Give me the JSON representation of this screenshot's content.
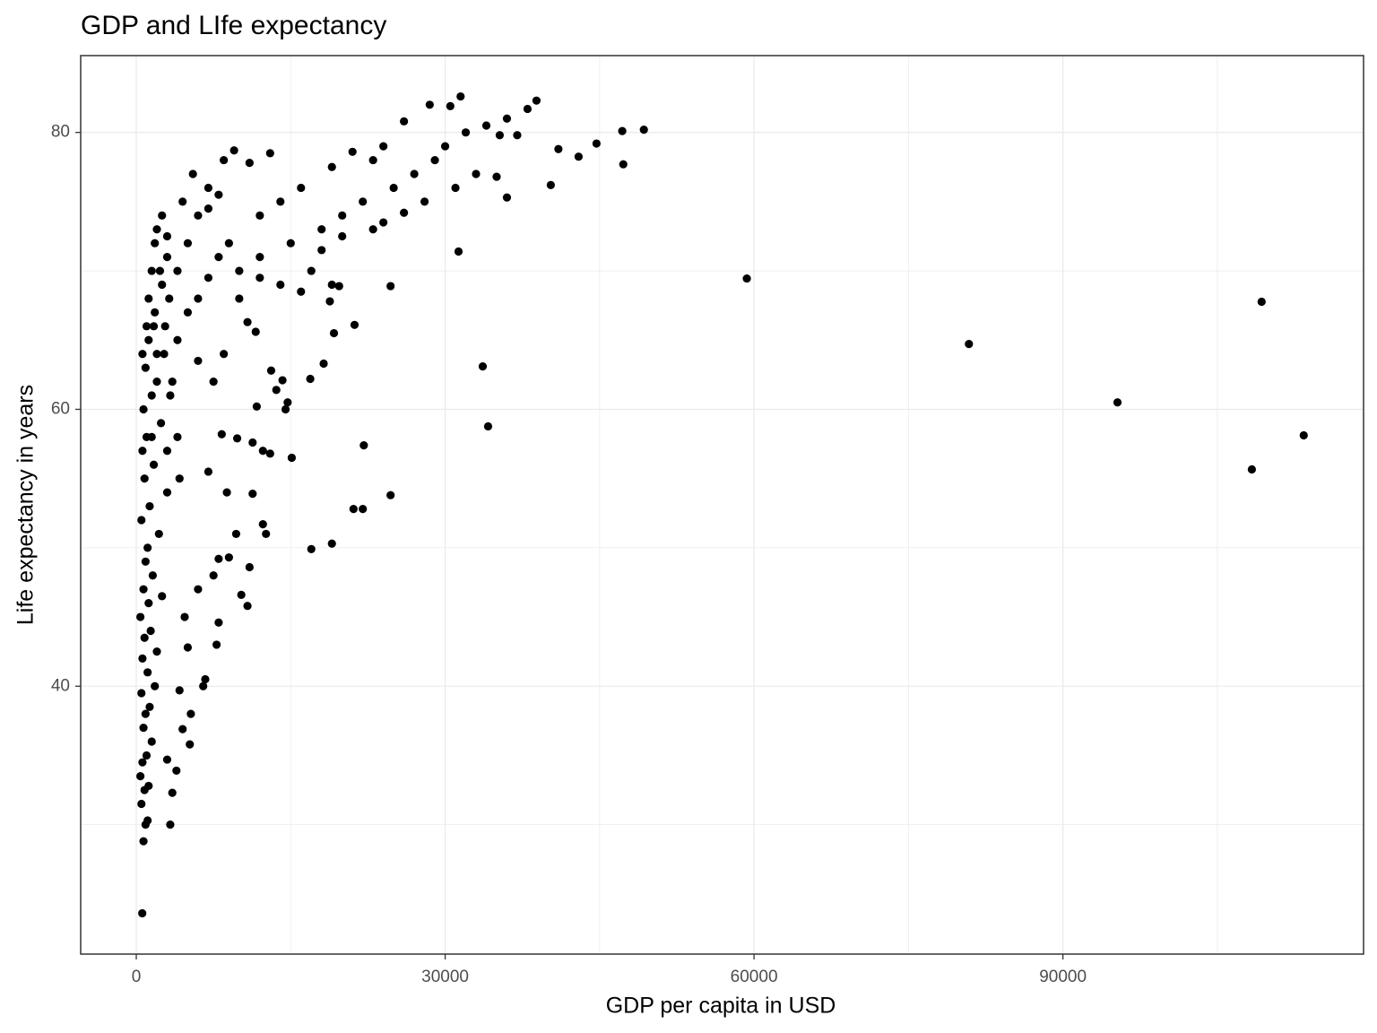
{
  "chart_data": {
    "type": "scatter",
    "title": "GDP and LIfe expectancy",
    "x_label": "GDP per capita in USD",
    "y_label": "Life expectancy in years",
    "color": "#000000",
    "xlim": [
      -5400,
      119200
    ],
    "ylim": [
      20.65,
      85.55
    ],
    "xticks": [
      0,
      30000,
      60000,
      90000
    ],
    "yticks": [
      40,
      60,
      80
    ],
    "x_minor_ticks": [
      15000,
      45000,
      75000,
      105000
    ],
    "y_minor_ticks": [
      30,
      50,
      70
    ],
    "grid": true,
    "x": [
      580,
      59300,
      80870,
      95300,
      109300,
      108350,
      113390,
      34170,
      33650,
      31300,
      24700,
      24700,
      38870,
      49300,
      47200,
      47300,
      44700,
      40260,
      700,
      900,
      1100,
      500,
      800,
      1200,
      400,
      600,
      1000,
      1500,
      700,
      900,
      1300,
      500,
      1800,
      1100,
      600,
      2000,
      800,
      1400,
      400,
      1200,
      2500,
      700,
      1600,
      900,
      1100,
      2200,
      500,
      1300,
      3000,
      800,
      1700,
      600,
      1000,
      2400,
      700,
      1500,
      3500,
      900,
      2000,
      1200,
      2800,
      1800,
      3200,
      2500,
      4000,
      3000,
      5000,
      2000,
      6000,
      4500,
      7000,
      5500,
      8500,
      9500,
      3000,
      3300,
      3500,
      3900,
      4200,
      4500,
      5200,
      5300,
      6500,
      6700,
      7800,
      8000,
      5000,
      4700,
      6000,
      7500,
      8000,
      9000,
      10200,
      10800,
      11000,
      9700,
      8800,
      7000,
      11300,
      12600,
      12300,
      9800,
      8300,
      11300,
      12300,
      13000,
      15100,
      17000,
      19000,
      21100,
      22000,
      22100,
      14500,
      14700,
      14200,
      13100,
      16900,
      18200,
      19200,
      21200,
      11600,
      10800,
      11700,
      13600,
      18800,
      19700,
      7500,
      8500,
      6000,
      4000,
      3000,
      10000,
      12000,
      15000,
      18000,
      20000,
      22000,
      25000,
      27000,
      29000,
      30000,
      32000,
      34000,
      36000,
      38000,
      26000,
      28500,
      31500,
      30500,
      35300,
      37000,
      16000,
      19000,
      21000,
      23000,
      24000,
      14000,
      12000,
      9000,
      7000,
      8000,
      11000,
      13000,
      24000,
      26000,
      28000,
      31000,
      33000,
      35000,
      36000,
      17000,
      18000,
      20000,
      23000,
      14000,
      12000,
      10000,
      16000,
      19000,
      4000,
      5000,
      6000,
      7000,
      8000,
      3000,
      2500,
      1500,
      1800,
      1200,
      1000,
      600,
      42960,
      41000,
      2000,
      1500,
      1700,
      2300,
      2700,
      3300,
      4200
    ],
    "values": [
      23.6,
      69.45,
      64.72,
      60.5,
      67.77,
      55.66,
      58.12,
      58.77,
      63.1,
      71.4,
      68.9,
      53.8,
      82.3,
      80.2,
      80.1,
      77.7,
      79.2,
      76.2,
      28.8,
      30,
      30.3,
      31.5,
      32.5,
      32.8,
      33.5,
      34.5,
      35,
      36,
      37,
      38,
      38.5,
      39.5,
      40,
      41,
      42,
      42.5,
      43.5,
      44,
      45,
      46,
      46.5,
      47,
      48,
      49,
      50,
      51,
      52,
      53,
      54,
      55,
      56,
      57,
      58,
      59,
      60,
      61,
      62,
      63,
      64,
      65,
      66,
      67,
      68,
      69,
      70,
      71,
      72,
      73,
      74,
      75,
      76,
      77,
      78,
      78.7,
      34.7,
      30,
      32.3,
      33.9,
      39.7,
      36.9,
      35.8,
      38,
      40,
      40.5,
      43,
      44.6,
      42.8,
      45,
      47,
      48,
      49.2,
      49.3,
      46.6,
      45.8,
      48.6,
      51,
      54,
      55.5,
      53.9,
      51,
      51.7,
      57.9,
      58.2,
      57.6,
      57,
      56.8,
      56.5,
      49.9,
      50.3,
      52.8,
      52.8,
      57.4,
      60,
      60.5,
      62.1,
      62.8,
      62.2,
      63.3,
      65.5,
      66.1,
      65.6,
      66.3,
      60.2,
      61.4,
      67.8,
      68.9,
      62,
      64,
      63.5,
      58,
      57,
      70,
      71,
      72,
      73,
      74,
      75,
      76,
      77,
      78,
      79,
      80,
      80.5,
      81,
      81.7,
      80.8,
      82,
      82.6,
      81.9,
      79.8,
      79.8,
      76,
      77.5,
      78.6,
      78,
      79,
      75,
      74,
      72,
      74.5,
      75.5,
      77.8,
      78.5,
      73.5,
      74.2,
      75,
      76,
      77,
      76.8,
      75.3,
      70,
      71.5,
      72.5,
      73,
      69,
      69.5,
      68,
      68.5,
      69,
      65,
      67,
      68,
      69.5,
      71,
      72.5,
      74,
      70,
      72,
      68,
      66,
      64,
      78.25,
      78.8,
      62,
      58,
      66,
      70,
      64,
      61,
      55
    ]
  }
}
